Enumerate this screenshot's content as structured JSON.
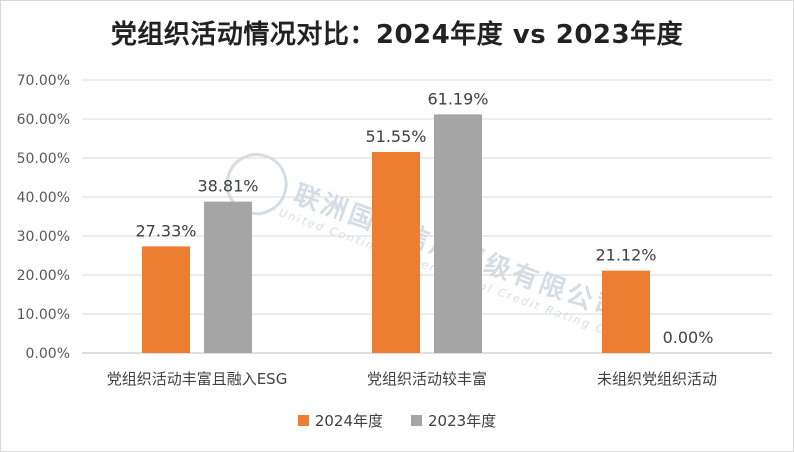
{
  "chart_data": {
    "type": "bar",
    "title": "党组织活动情况对比：2024年度 vs 2023年度",
    "categories": [
      "党组织活动丰富且融入ESG",
      "党组织活动较丰富",
      "未组织党组织活动"
    ],
    "series": [
      {
        "name": "2024年度",
        "values": [
          27.33,
          51.55,
          21.12
        ],
        "labels": [
          "27.33%",
          "51.55%",
          "21.12%"
        ],
        "color": "#ED7D31"
      },
      {
        "name": "2023年度",
        "values": [
          38.81,
          61.19,
          0.0
        ],
        "labels": [
          "38.81%",
          "61.19%",
          "0.00%"
        ],
        "color": "#A5A5A5"
      }
    ],
    "ylim": [
      0,
      70
    ],
    "yticks": [
      "0.00%",
      "10.00%",
      "20.00%",
      "30.00%",
      "40.00%",
      "50.00%",
      "60.00%",
      "70.00%"
    ],
    "grid": true,
    "legend": "bottom"
  },
  "watermark": {
    "name": "联洲国际信用评级有限公司",
    "english": "United Continent International Credit Rating Co.,Ltd",
    "icon": "globe-logo-icon"
  }
}
